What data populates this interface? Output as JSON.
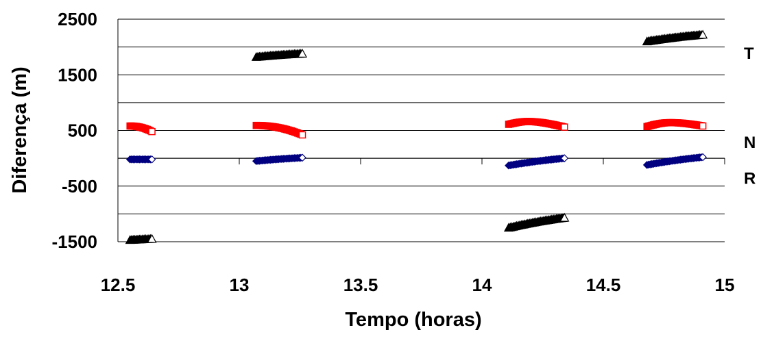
{
  "chart_data": {
    "type": "scatter",
    "xlabel": "Tempo (horas)",
    "ylabel": "Diferença (m)",
    "xlim": [
      12.5,
      15
    ],
    "ylim": [
      -1500,
      2500
    ],
    "x_ticks": [
      "12.5",
      "13",
      "13.5",
      "14",
      "14.5",
      "15"
    ],
    "y_ticks": [
      "2500",
      "1500",
      "500",
      "-500",
      "-1500"
    ],
    "grid": "horizontal",
    "legend": [
      {
        "label": "T",
        "marker": "triangle",
        "y": 1900
      },
      {
        "label": "N",
        "marker": "square",
        "y": 300
      },
      {
        "label": "R",
        "marker": "diamond",
        "y": -350
      }
    ],
    "series": [
      {
        "name": "T",
        "marker": "triangle",
        "color": "#000000",
        "segments": [
          {
            "x_start": 12.55,
            "x_end": 12.64,
            "y_start": -1470,
            "y_end": -1450
          },
          {
            "x_start": 13.07,
            "x_end": 13.26,
            "y_start": 1820,
            "y_end": 1880
          },
          {
            "x_start": 14.11,
            "x_end": 14.34,
            "y_start": -1250,
            "y_end": -1070
          },
          {
            "x_start": 14.68,
            "x_end": 14.91,
            "y_start": 2100,
            "y_end": 2220
          }
        ]
      },
      {
        "name": "N",
        "marker": "square",
        "color": "#ff0000",
        "segments": [
          {
            "x_start": 12.55,
            "x_end": 12.64,
            "y_start": 580,
            "y_end": 480,
            "shape": "fall"
          },
          {
            "x_start": 13.07,
            "x_end": 13.26,
            "y_start": 590,
            "y_end": 420,
            "shape": "fall"
          },
          {
            "x_start": 14.11,
            "x_end": 14.34,
            "y_start": 610,
            "y_end": 560,
            "peak": 660,
            "shape": "arch"
          },
          {
            "x_start": 14.68,
            "x_end": 14.91,
            "y_start": 570,
            "y_end": 580,
            "peak": 640,
            "shape": "arch"
          }
        ]
      },
      {
        "name": "R",
        "marker": "diamond",
        "color": "#000080",
        "segments": [
          {
            "x_start": 12.55,
            "x_end": 12.64,
            "y_start": -20,
            "y_end": -20
          },
          {
            "x_start": 13.07,
            "x_end": 13.26,
            "y_start": -50,
            "y_end": 10
          },
          {
            "x_start": 14.11,
            "x_end": 14.34,
            "y_start": -130,
            "y_end": 0
          },
          {
            "x_start": 14.68,
            "x_end": 14.91,
            "y_start": -120,
            "y_end": 20
          }
        ]
      }
    ]
  }
}
